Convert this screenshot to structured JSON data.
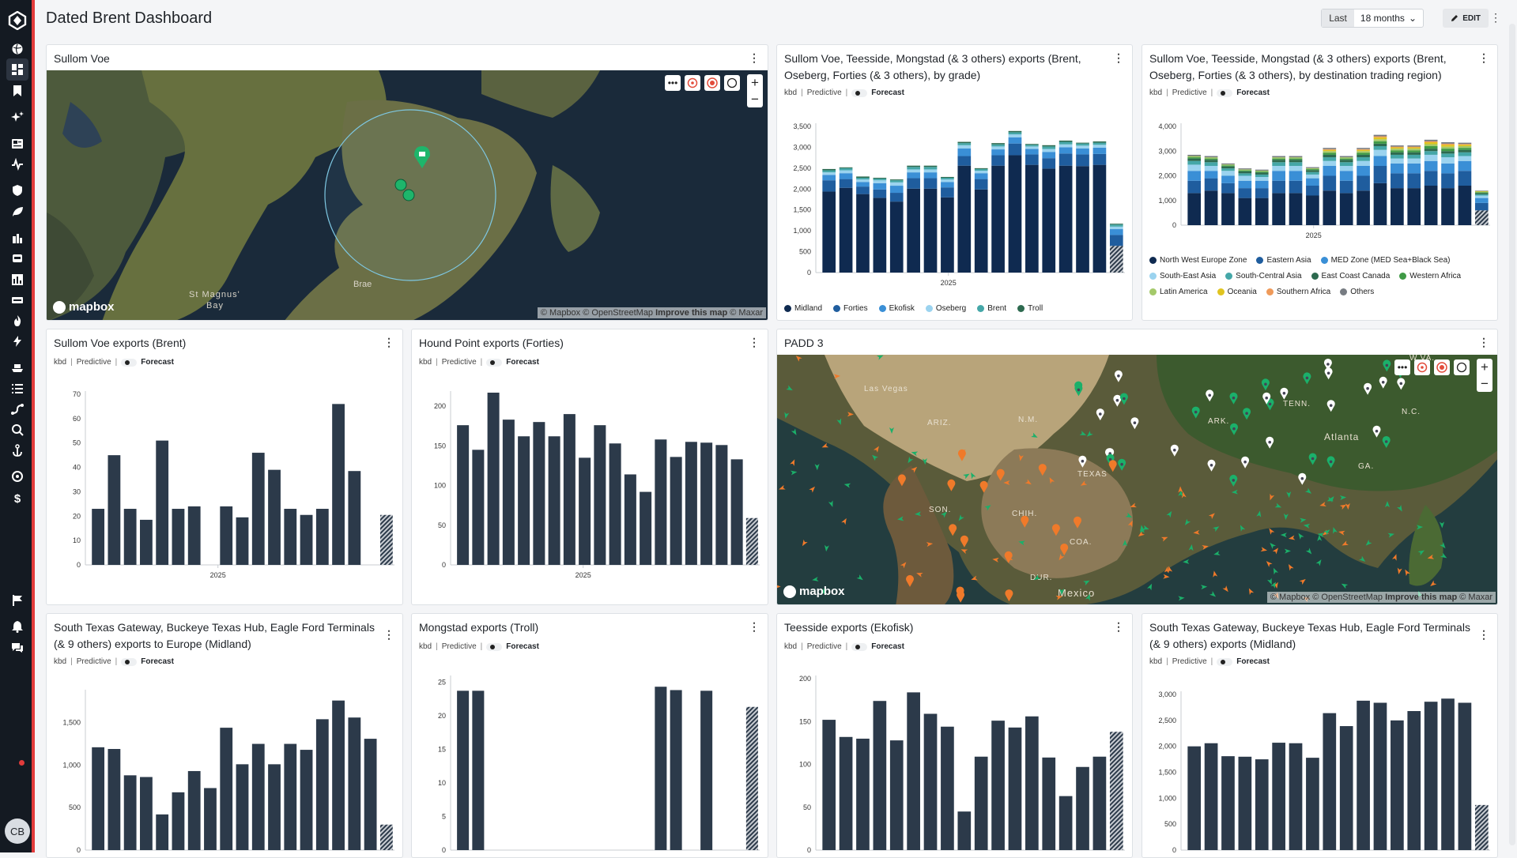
{
  "header": {
    "title": "Dated Brent Dashboard",
    "range_prefix": "Last",
    "range_value": "18 months",
    "edit_label": "EDIT"
  },
  "user": {
    "initials": "CB"
  },
  "common": {
    "unit": "kbd",
    "mode": "Predictive",
    "forecast": "Forecast",
    "x_label": "2025"
  },
  "colors": {
    "accent": "#e23b3b",
    "bar": "#2c3a4a",
    "Midland": "#0f2a50",
    "Forties": "#1f5d9e",
    "Ekofisk": "#3a8fd6",
    "Oseberg": "#9bd3ef",
    "Brent": "#45a7a8",
    "Troll": "#2d6a4f"
  },
  "panels": {
    "sullom_map": {
      "title": "Sullom Voe",
      "labels": [
        "St Magnus'",
        "Bay",
        "Brae"
      ],
      "logo": "mapbox",
      "attribution": [
        "© Mapbox",
        "© OpenStreetMap",
        "Improve this map",
        "© Maxar"
      ]
    },
    "grade_chart": {
      "title": "Sullom Voe, Teesside, Mongstad (& 3 others) exports (Brent, Oseberg, Forties (& 3 others), by grade)"
    },
    "region_chart": {
      "title": "Sullom Voe, Teesside, Mongstad (& 3 others) exports (Brent, Oseberg, Forties (& 3 others), by destination trading region)"
    },
    "sullom_brent": {
      "title": "Sullom Voe exports (Brent)"
    },
    "hound_forties": {
      "title": "Hound Point exports (Forties)"
    },
    "padd3_map": {
      "title": "PADD 3",
      "labels": [
        "Las Vegas",
        "ARIZ.",
        "N.M.",
        "TEXAS",
        "SON.",
        "CHIH.",
        "COA.",
        "DUR.",
        "Mexico",
        "ARK.",
        "TENN.",
        "Atlanta",
        "GA.",
        "N.C.",
        "W.VA."
      ],
      "logo": "mapbox",
      "attribution": [
        "© Mapbox",
        "© OpenStreetMap",
        "Improve this map",
        "© Maxar"
      ]
    },
    "stx_europe": {
      "title": "South Texas Gateway, Buckeye Texas Hub, Eagle Ford Terminals (& 9 others) exports to Europe (Midland)"
    },
    "mongstad_troll": {
      "title": "Mongstad exports (Troll)"
    },
    "teesside_ekofisk": {
      "title": "Teesside exports (Ekofisk)"
    },
    "stx_midland": {
      "title": "South Texas Gateway, Buckeye Texas Hub, Eagle Ford Terminals (& 9 others) exports (Midland)"
    }
  },
  "chart_data": [
    {
      "id": "grade_chart",
      "type": "bar",
      "stacked": true,
      "ylim": [
        0,
        3500
      ],
      "yticks": [
        0,
        500,
        1000,
        1500,
        2000,
        2500,
        3000,
        3500
      ],
      "xlabel": "2025",
      "last_is_forecast": true,
      "series": [
        {
          "name": "Midland",
          "values": [
            1940,
            2030,
            1880,
            1790,
            1700,
            2010,
            2010,
            1800,
            2560,
            1990,
            2560,
            2810,
            2580,
            2490,
            2560,
            2550,
            2580,
            640
          ]
        },
        {
          "name": "Forties",
          "values": [
            270,
            210,
            180,
            200,
            210,
            250,
            250,
            240,
            230,
            250,
            250,
            280,
            250,
            250,
            290,
            280,
            260,
            260
          ]
        },
        {
          "name": "Ekofisk",
          "values": [
            130,
            140,
            110,
            150,
            170,
            140,
            140,
            130,
            180,
            140,
            140,
            150,
            130,
            150,
            150,
            140,
            150,
            140
          ]
        },
        {
          "name": "Oseberg",
          "values": [
            60,
            70,
            60,
            70,
            80,
            70,
            70,
            60,
            80,
            60,
            70,
            70,
            60,
            70,
            70,
            70,
            70,
            60
          ]
        },
        {
          "name": "Brent",
          "values": [
            50,
            50,
            40,
            40,
            50,
            60,
            60,
            40,
            50,
            40,
            50,
            50,
            40,
            60,
            60,
            50,
            50,
            50
          ]
        },
        {
          "name": "Troll",
          "values": [
            30,
            20,
            30,
            20,
            20,
            30,
            30,
            20,
            30,
            20,
            30,
            30,
            20,
            30,
            30,
            20,
            30,
            20
          ]
        }
      ]
    },
    {
      "id": "region_chart",
      "type": "bar",
      "stacked": true,
      "ylim": [
        0,
        4000
      ],
      "yticks": [
        0,
        1000,
        2000,
        3000,
        4000
      ],
      "xlabel": "2025",
      "last_is_forecast": true,
      "series": [
        {
          "name": "North West Europe Zone",
          "values": [
            1300,
            1400,
            1300,
            1100,
            1100,
            1300,
            1300,
            1200,
            1400,
            1300,
            1400,
            1700,
            1500,
            1500,
            1600,
            1500,
            1600,
            600
          ]
        },
        {
          "name": "Eastern Asia",
          "values": [
            500,
            500,
            400,
            400,
            400,
            500,
            500,
            400,
            600,
            500,
            600,
            700,
            600,
            600,
            600,
            600,
            600,
            300
          ]
        },
        {
          "name": "MED Zone (MED Sea+Black Sea)",
          "values": [
            400,
            300,
            300,
            300,
            300,
            400,
            400,
            300,
            400,
            400,
            400,
            400,
            400,
            400,
            400,
            400,
            400,
            200
          ]
        },
        {
          "name": "South-East Asia",
          "values": [
            250,
            200,
            200,
            200,
            150,
            200,
            200,
            150,
            200,
            200,
            200,
            250,
            200,
            200,
            250,
            250,
            200,
            100
          ]
        },
        {
          "name": "South-Central Asia",
          "values": [
            150,
            150,
            100,
            100,
            100,
            150,
            150,
            100,
            150,
            150,
            150,
            150,
            150,
            150,
            150,
            150,
            150,
            50
          ]
        },
        {
          "name": "East Coast Canada",
          "values": [
            100,
            100,
            80,
            80,
            80,
            100,
            100,
            80,
            100,
            100,
            100,
            100,
            100,
            100,
            100,
            100,
            100,
            50
          ]
        },
        {
          "name": "Western Africa",
          "values": [
            50,
            50,
            40,
            40,
            40,
            50,
            50,
            40,
            80,
            50,
            80,
            100,
            80,
            80,
            100,
            100,
            80,
            30
          ]
        },
        {
          "name": "Latin America",
          "values": [
            50,
            50,
            40,
            40,
            40,
            50,
            50,
            40,
            70,
            50,
            70,
            80,
            70,
            70,
            80,
            80,
            70,
            30
          ]
        },
        {
          "name": "Oceania",
          "values": [
            0,
            0,
            0,
            0,
            0,
            0,
            0,
            0,
            50,
            0,
            50,
            80,
            50,
            50,
            80,
            80,
            60,
            20
          ]
        },
        {
          "name": "Southern Africa",
          "values": [
            0,
            0,
            0,
            0,
            0,
            0,
            0,
            0,
            30,
            0,
            30,
            40,
            30,
            30,
            40,
            40,
            30,
            0
          ]
        },
        {
          "name": "Others",
          "values": [
            50,
            50,
            40,
            40,
            40,
            50,
            50,
            40,
            50,
            50,
            50,
            60,
            50,
            50,
            60,
            60,
            50,
            20
          ]
        }
      ]
    },
    {
      "id": "sullom_brent",
      "type": "bar",
      "ylim": [
        0,
        70
      ],
      "yticks": [
        0,
        10,
        20,
        30,
        40,
        50,
        60,
        70
      ],
      "xlabel": "2025",
      "last_is_forecast": true,
      "values": [
        23,
        45,
        23,
        18.5,
        51,
        23,
        24,
        0,
        24,
        19.5,
        46,
        39,
        23,
        20.5,
        23,
        66,
        38.5,
        0,
        20.5
      ]
    },
    {
      "id": "hound_forties",
      "type": "bar",
      "ylim": [
        0,
        215
      ],
      "yticks": [
        0,
        50,
        100,
        150,
        200
      ],
      "xlabel": "2025",
      "last_is_forecast": true,
      "values": [
        176,
        145,
        217,
        183,
        162,
        180,
        162,
        190,
        135,
        176,
        153,
        114,
        92,
        158,
        136,
        155,
        154,
        151,
        133,
        59
      ]
    },
    {
      "id": "stx_europe",
      "type": "bar",
      "ylim": [
        0,
        1850
      ],
      "yticks": [
        0,
        500,
        1000,
        1500
      ],
      "last_is_forecast": true,
      "values": [
        1210,
        1190,
        880,
        860,
        420,
        680,
        930,
        730,
        1440,
        1010,
        1250,
        1010,
        1250,
        1180,
        1540,
        1760,
        1560,
        1310,
        300
      ]
    },
    {
      "id": "mongstad_troll",
      "type": "bar",
      "ylim": [
        0,
        25.5
      ],
      "yticks": [
        0,
        5,
        10,
        15,
        20,
        25
      ],
      "last_is_forecast": true,
      "values": [
        23.7,
        23.7,
        0,
        0,
        0,
        0,
        0,
        0,
        0,
        0,
        0,
        0,
        0,
        24.3,
        23.8,
        0,
        23.7,
        0,
        0,
        21.3
      ]
    },
    {
      "id": "teesside_ekofisk",
      "type": "bar",
      "ylim": [
        0,
        200
      ],
      "yticks": [
        0,
        50,
        100,
        150,
        200
      ],
      "last_is_forecast": true,
      "values": [
        152,
        132,
        130,
        174,
        128,
        184,
        159,
        144,
        45,
        109,
        151,
        143,
        156,
        108,
        63,
        97,
        109,
        138
      ]
    },
    {
      "id": "stx_midland",
      "type": "bar",
      "ylim": [
        0,
        3000
      ],
      "yticks": [
        0,
        500,
        1000,
        1500,
        2000,
        2500,
        3000
      ],
      "last_is_forecast": true,
      "values": [
        2000,
        2060,
        1810,
        1800,
        1750,
        2070,
        2060,
        1780,
        2640,
        2390,
        2880,
        2840,
        2500,
        2680,
        2860,
        2920,
        2840,
        870
      ]
    }
  ]
}
